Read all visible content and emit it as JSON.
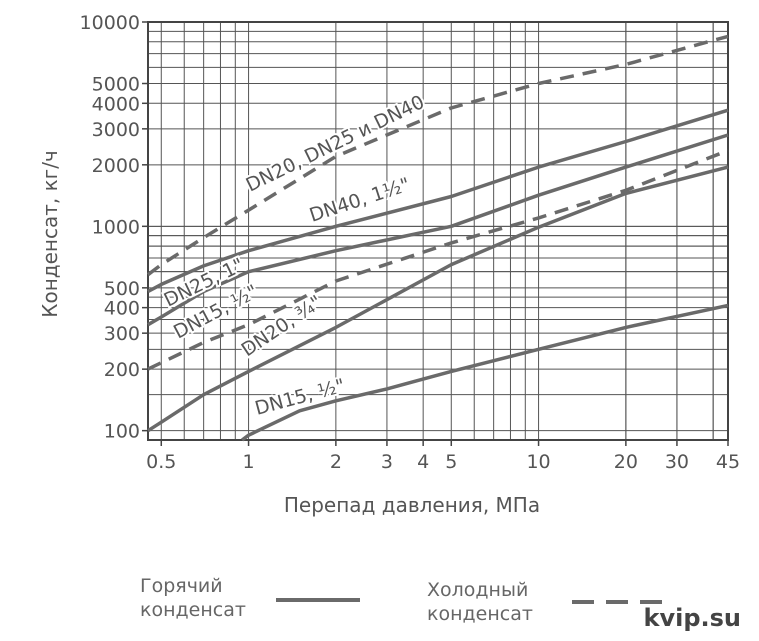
{
  "chart_data": {
    "type": "line",
    "title": "",
    "xlabel": "Перепад давления, МПа",
    "ylabel": "Конденсат, кг/ч",
    "xscale": "log",
    "yscale": "log",
    "xlim": [
      0.45,
      45
    ],
    "ylim": [
      90,
      10000
    ],
    "x_ticks": [
      0.5,
      1,
      2,
      3,
      4,
      5,
      10,
      20,
      30,
      45
    ],
    "x_tick_labels": [
      "0.5",
      "1",
      "2",
      "3",
      "4",
      "5",
      "10",
      "20",
      "30",
      "45"
    ],
    "y_ticks": [
      100,
      200,
      300,
      400,
      500,
      1000,
      2000,
      3000,
      4000,
      5000,
      10000
    ],
    "y_tick_labels": [
      "100",
      "200",
      "300",
      "400",
      "500",
      "1000",
      "2000",
      "3000",
      "4000",
      "5000",
      "10000"
    ],
    "grid": true,
    "series": [
      {
        "name": "DN20, DN25 и DN40",
        "style": "dashed",
        "x": [
          0.45,
          0.5,
          0.7,
          1,
          2,
          5,
          10,
          20,
          45
        ],
        "y": [
          580,
          650,
          880,
          1200,
          2200,
          3800,
          5000,
          6200,
          8500
        ]
      },
      {
        "name": "DN40, 1½\"",
        "style": "solid",
        "x": [
          0.45,
          0.5,
          0.7,
          1,
          2,
          5,
          10,
          20,
          45
        ],
        "y": [
          480,
          520,
          640,
          760,
          1000,
          1400,
          1950,
          2600,
          3700
        ]
      },
      {
        "name": "DN25, 1\"",
        "style": "solid",
        "x": [
          0.45,
          0.5,
          0.7,
          1,
          2,
          5,
          10,
          20,
          45
        ],
        "y": [
          330,
          360,
          480,
          600,
          760,
          1000,
          1420,
          1950,
          2800
        ]
      },
      {
        "name": "DN15, ½\"",
        "style": "dashed",
        "x": [
          0.45,
          0.5,
          0.7,
          1,
          2,
          5,
          10,
          20,
          45
        ],
        "y": [
          200,
          215,
          270,
          330,
          540,
          830,
          1100,
          1500,
          2350
        ]
      },
      {
        "name": "DN20, ¾\"",
        "style": "solid",
        "x": [
          0.45,
          0.5,
          0.7,
          1,
          2,
          5,
          10,
          20,
          45
        ],
        "y": [
          100,
          110,
          150,
          195,
          320,
          650,
          990,
          1450,
          1950
        ]
      },
      {
        "name": "DN15, ½\"",
        "style": "solid",
        "x": [
          0.95,
          1,
          1.5,
          2,
          3,
          5,
          10,
          20,
          45
        ],
        "y": [
          90,
          95,
          125,
          140,
          160,
          195,
          250,
          320,
          410
        ]
      }
    ],
    "curve_labels": [
      "DN20, DN25 и DN40",
      "DN40, 1½\"",
      "DN25, 1\"",
      "DN15, ½\"",
      "DN20, ¾\"",
      "DN15, ½\""
    ]
  },
  "legend": {
    "hot": "Горячий\nконденсат",
    "cold": "Холодный\nконденсат"
  },
  "brand": "kvip.su",
  "colors": {
    "line": "#6a6a6a",
    "grid": "#555555",
    "text": "#555555"
  }
}
